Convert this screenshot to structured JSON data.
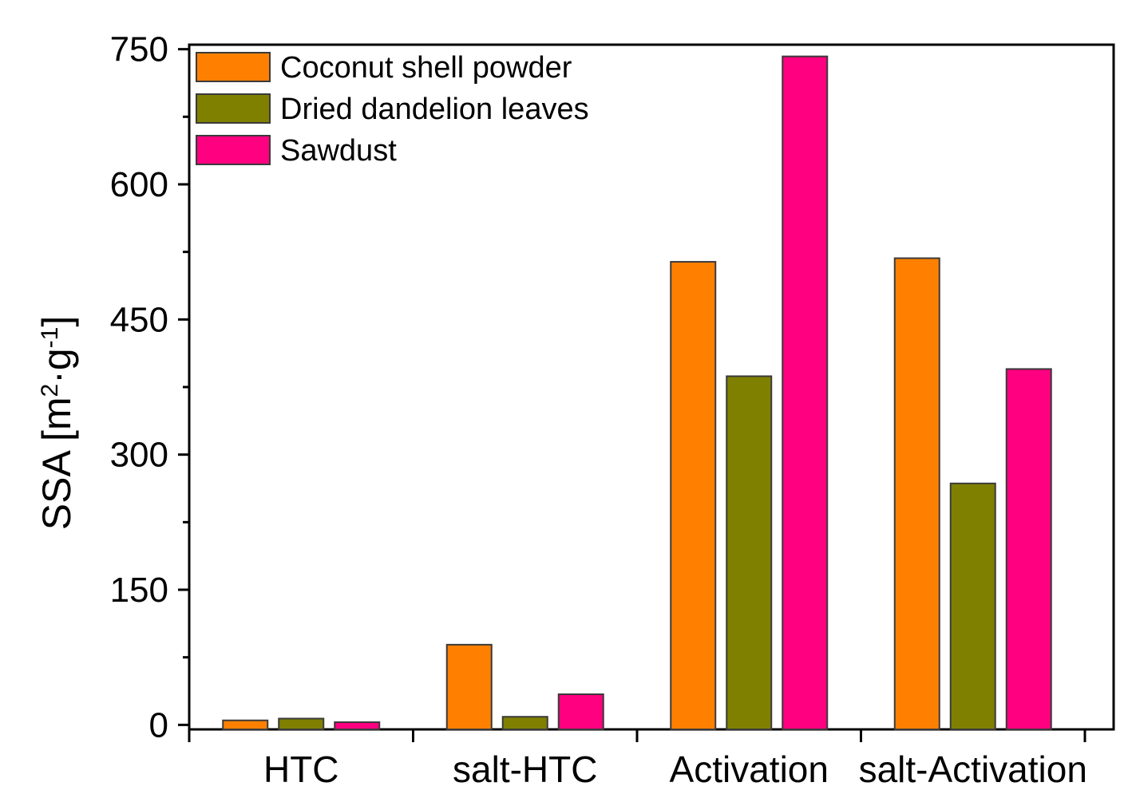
{
  "chart_data": {
    "type": "bar",
    "title": "",
    "xlabel": "",
    "ylabel": {
      "prefix": "SSA [m",
      "sup1": "2",
      "middle": "·g",
      "sup2": "-1",
      "suffix": "]"
    },
    "categories": [
      "HTC",
      "salt-HTC",
      "Activation",
      "salt-Activation"
    ],
    "series": [
      {
        "name": "Coconut shell powder",
        "color": "#ff8000",
        "values": [
          5,
          89,
          514,
          518
        ]
      },
      {
        "name": "Dried dandelion leaves",
        "color": "#808000",
        "values": [
          7,
          9,
          387,
          268
        ]
      },
      {
        "name": "Sawdust",
        "color": "#ff0080",
        "values": [
          3,
          34,
          742,
          395
        ]
      }
    ],
    "ylim": [
      -5,
      755
    ],
    "yticks": [
      0,
      150,
      300,
      450,
      600,
      750
    ],
    "legend_position": "top-left",
    "grid": false
  }
}
